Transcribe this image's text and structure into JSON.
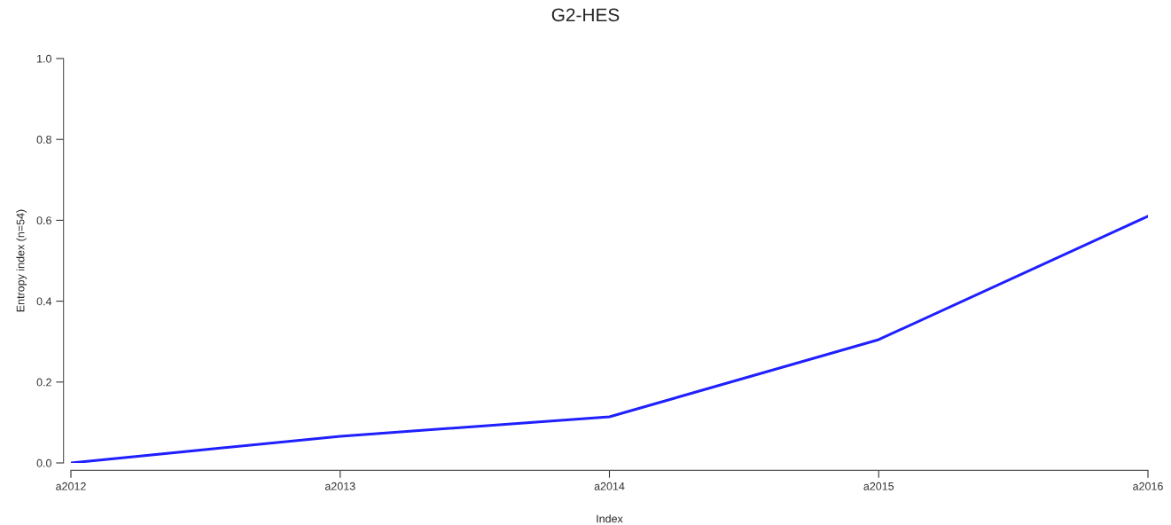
{
  "chart_data": {
    "type": "line",
    "title": "G2-HES",
    "xlabel": "Index",
    "ylabel": "Entropy index (n=54)",
    "categories": [
      "a2012",
      "a2013",
      "a2014",
      "a2015",
      "a2016"
    ],
    "series": [
      {
        "color": "#1f1fff",
        "values": [
          0.0,
          0.066,
          0.114,
          0.305,
          0.61
        ]
      }
    ],
    "ylim": [
      0,
      1
    ],
    "yticks": [
      {
        "value": 0,
        "label": "0.0"
      },
      0.2,
      0.4,
      0.6,
      0.8,
      {
        "value": 1,
        "label": "1.0"
      }
    ],
    "grid": false,
    "marker": "none",
    "line_style": "solid"
  }
}
